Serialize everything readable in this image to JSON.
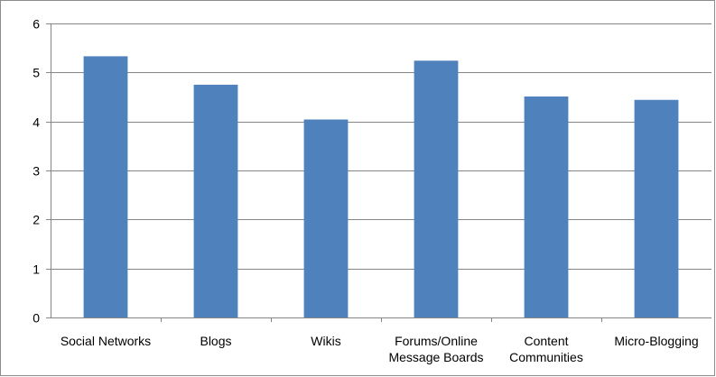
{
  "chart_data": {
    "type": "bar",
    "categories": [
      [
        "Social Networks"
      ],
      [
        "Blogs"
      ],
      [
        "Wikis"
      ],
      [
        "Forums/Online",
        "Message Boards"
      ],
      [
        "Content",
        "Communities"
      ],
      [
        "Micro-Blogging"
      ]
    ],
    "values": [
      5.33,
      4.75,
      4.04,
      5.24,
      4.51,
      4.44
    ],
    "ylim": [
      0,
      6
    ],
    "yticks": [
      "0",
      "1",
      "2",
      "3",
      "4",
      "5",
      "6"
    ],
    "grid": true,
    "legend": "none",
    "bar_color": "#4f81bd",
    "grid_color": "#868686"
  }
}
